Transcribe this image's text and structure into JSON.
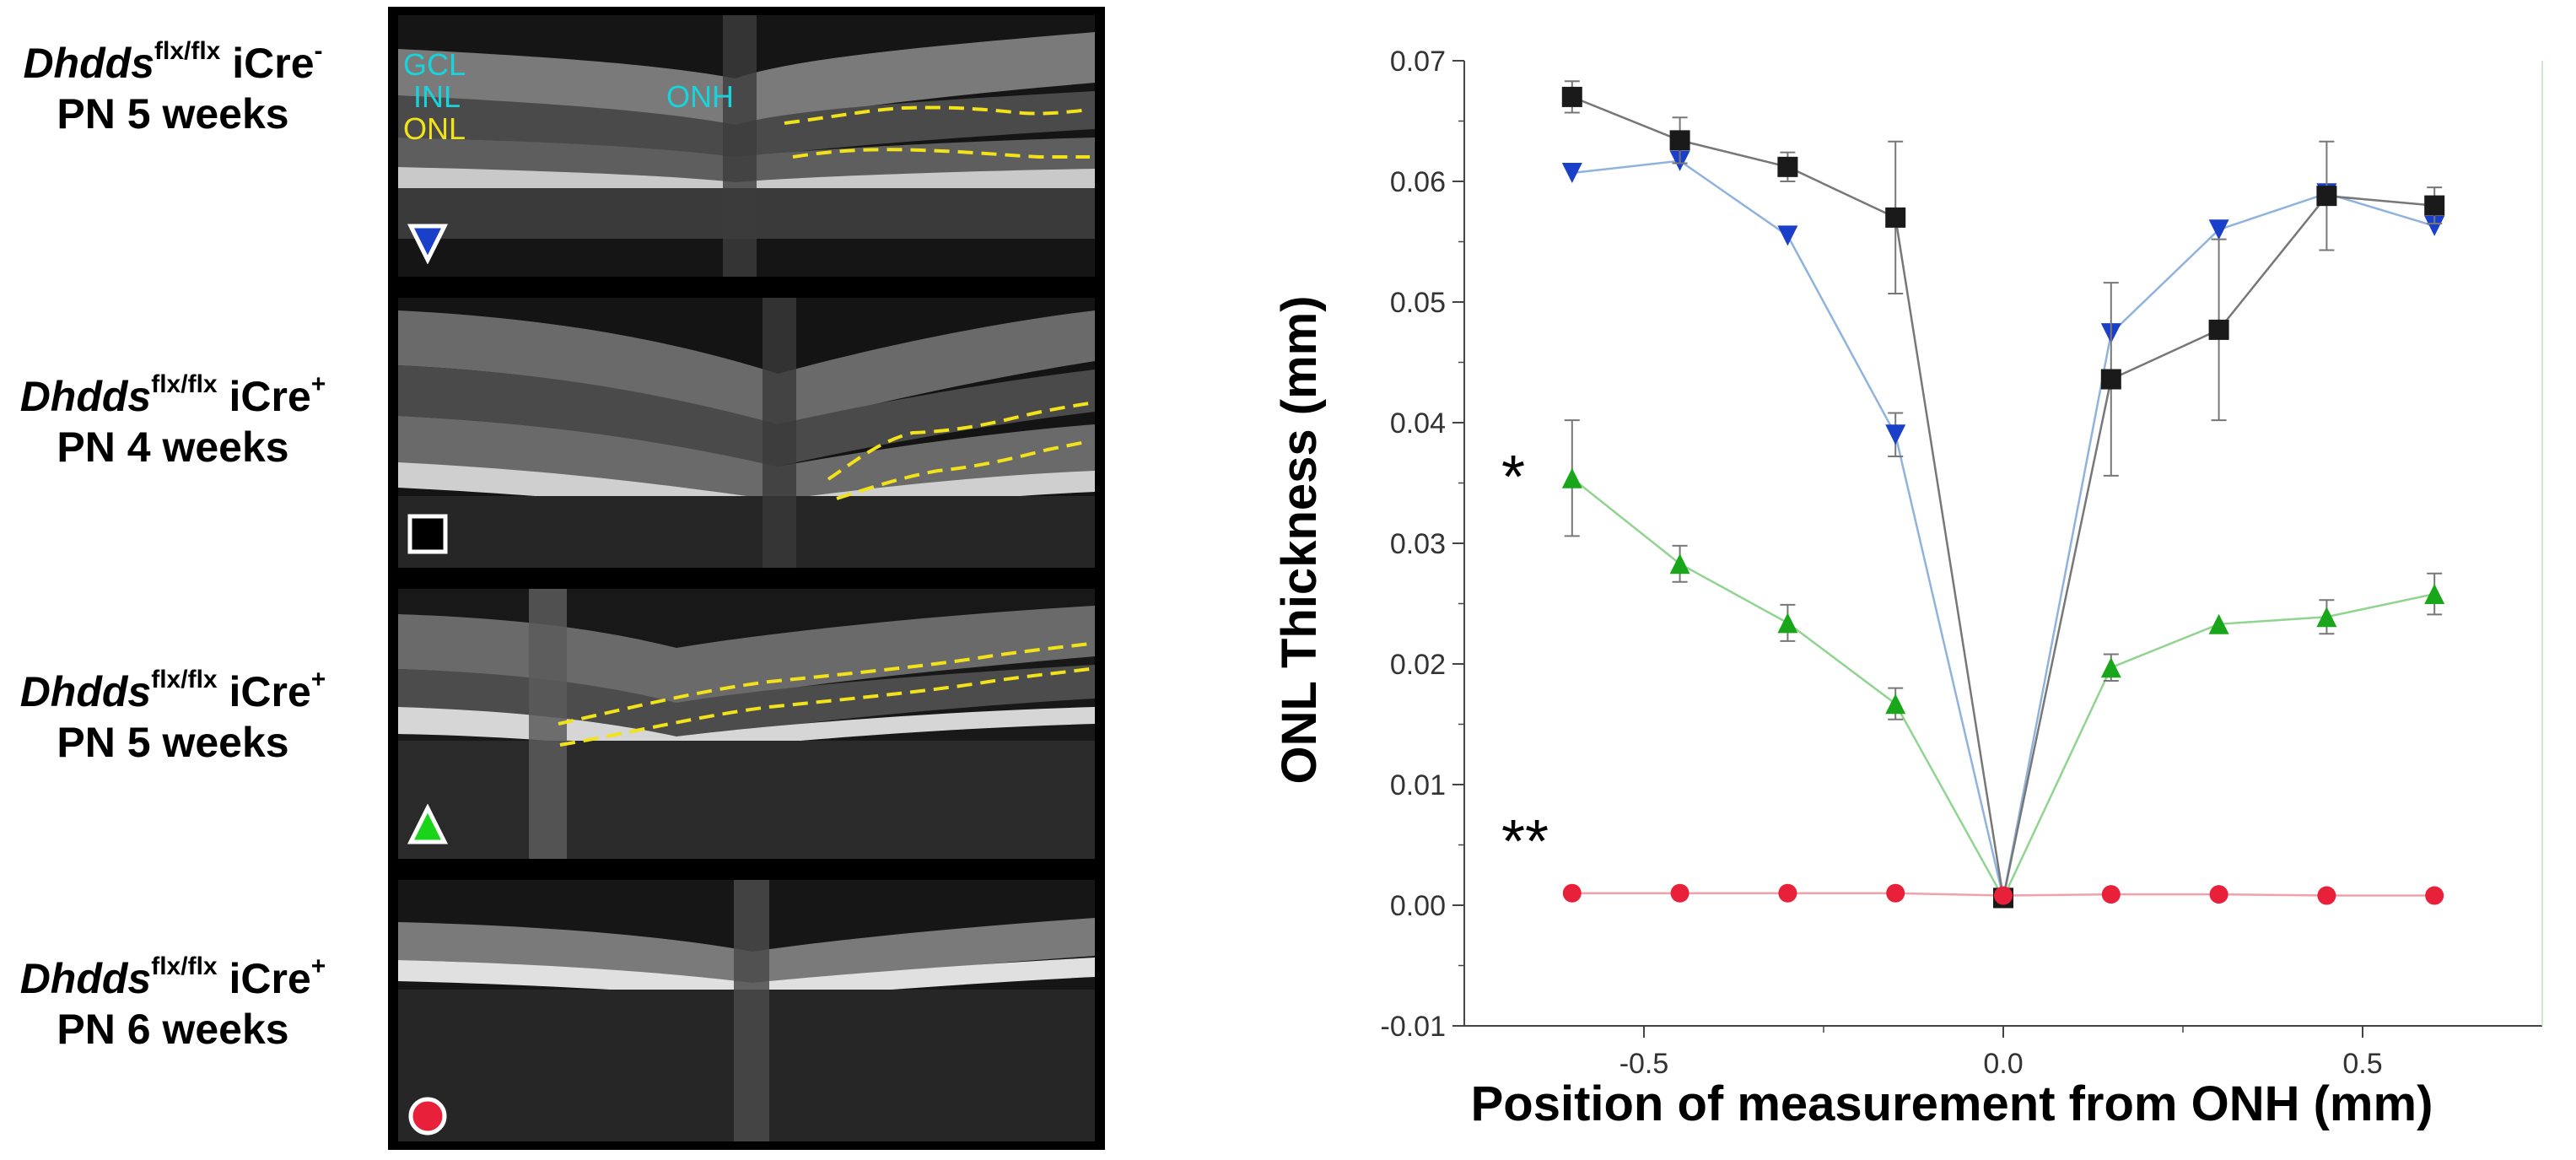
{
  "rows": [
    {
      "gene": "Dhdds",
      "sup": "flx/flx",
      "cre": "iCre",
      "cre_sign": "-",
      "age": "PN 5 weeks",
      "marker": "blue-down-triangle"
    },
    {
      "gene": "Dhdds",
      "sup": "flx/flx",
      "cre": "iCre",
      "cre_sign": "+",
      "age": "PN 4 weeks",
      "marker": "black-square"
    },
    {
      "gene": "Dhdds",
      "sup": "flx/flx",
      "cre": "iCre",
      "cre_sign": "+",
      "age": "PN 5 weeks",
      "marker": "green-up-triangle"
    },
    {
      "gene": "Dhdds",
      "sup": "flx/flx",
      "cre": "iCre",
      "cre_sign": "+",
      "age": "PN 6 weeks",
      "marker": "red-circle"
    }
  ],
  "oct_labels": {
    "gcl": "GCL",
    "inl": "INL",
    "onl": "ONL",
    "onh": "ONH"
  },
  "colors": {
    "cyan": "#19d3dc",
    "yellow": "#f2e21a",
    "blue": "#1a3fc8",
    "black": "#1a1a1a",
    "green": "#1aa61a",
    "red": "#e8203a"
  },
  "significance": {
    "single": "*",
    "double": "**"
  },
  "chart_data": {
    "type": "line",
    "title": "",
    "xlabel": "Position of measurement from ONH (mm)",
    "ylabel": "ONL Thickness (mm)",
    "xlim": [
      -0.75,
      0.75
    ],
    "ylim": [
      -0.01,
      0.07
    ],
    "xticks": [
      -0.5,
      0.0,
      0.5
    ],
    "xtick_labels": [
      "-0.5",
      "0.0",
      "0.5"
    ],
    "yticks": [
      -0.01,
      0.0,
      0.01,
      0.02,
      0.03,
      0.04,
      0.05,
      0.06,
      0.07
    ],
    "ytick_labels": [
      "-0.01",
      "0.00",
      "0.01",
      "0.02",
      "0.03",
      "0.04",
      "0.05",
      "0.06",
      "0.07"
    ],
    "x": [
      -0.6,
      -0.45,
      -0.3,
      -0.15,
      0.0,
      0.15,
      0.3,
      0.45,
      0.6
    ],
    "series": [
      {
        "name": "iCre+ PN 4 weeks",
        "marker": "square",
        "color": "#1a1a1a",
        "line": "#777777",
        "values": [
          0.067,
          0.0634,
          0.0612,
          0.057,
          0.0006,
          0.0436,
          0.0477,
          0.0588,
          0.058
        ],
        "errors": [
          0.0013,
          0.0019,
          0.0012,
          0.0063,
          0.0,
          0.008,
          0.0075,
          0.0045,
          0.0015
        ]
      },
      {
        "name": "iCre- PN 5 weeks",
        "marker": "triangle-down",
        "color": "#1a3fc8",
        "line": "#8fb3dc",
        "values": [
          0.0607,
          0.0617,
          0.0555,
          0.039,
          0.0006,
          0.0474,
          0.056,
          0.059,
          0.0563
        ],
        "errors": [
          0.0,
          0.0,
          0.0,
          0.0018,
          0.0,
          0.0,
          0.0,
          0.0,
          0.0
        ]
      },
      {
        "name": "iCre+ PN 5 weeks",
        "marker": "triangle-up",
        "color": "#1aa61a",
        "line": "#90d490",
        "values": [
          0.0354,
          0.0283,
          0.0234,
          0.0167,
          0.0006,
          0.0197,
          0.0233,
          0.0239,
          0.0258
        ],
        "errors": [
          0.0048,
          0.0015,
          0.0015,
          0.0013,
          0.0,
          0.0011,
          0.0,
          0.0014,
          0.0017
        ]
      },
      {
        "name": "iCre+ PN 6 weeks",
        "marker": "circle",
        "color": "#e8203a",
        "line": "#f2a0aa",
        "values": [
          0.001,
          0.001,
          0.001,
          0.001,
          0.0008,
          0.0009,
          0.0009,
          0.0008,
          0.0008
        ],
        "errors": [
          0,
          0,
          0,
          0,
          0,
          0,
          0,
          0,
          0
        ]
      }
    ]
  }
}
